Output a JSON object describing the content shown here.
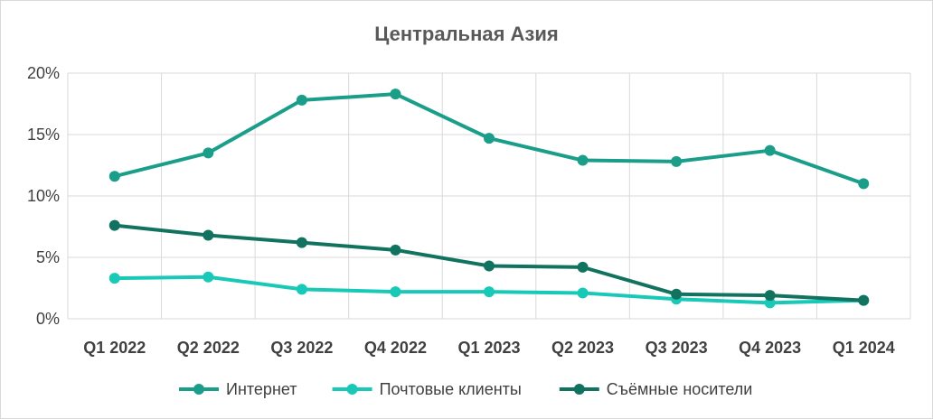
{
  "chart_data": {
    "type": "line",
    "title": "Центральная Азия",
    "categories": [
      "Q1 2022",
      "Q2 2022",
      "Q3 2022",
      "Q4 2022",
      "Q1 2023",
      "Q2 2023",
      "Q3 2023",
      "Q4 2023",
      "Q1 2024"
    ],
    "ylim": [
      0,
      20
    ],
    "yticks": [
      0,
      5,
      10,
      15,
      20
    ],
    "ytick_labels": [
      "0%",
      "5%",
      "10%",
      "15%",
      "20%"
    ],
    "grid": true,
    "legend": "bottom",
    "series": [
      {
        "name": "Интернет",
        "color": "#1a9e8a",
        "values": [
          11.6,
          13.5,
          17.8,
          18.3,
          14.7,
          12.9,
          12.8,
          13.7,
          11.0
        ]
      },
      {
        "name": "Почтовые клиенты",
        "color": "#19c9b8",
        "values": [
          3.3,
          3.4,
          2.4,
          2.2,
          2.2,
          2.1,
          1.6,
          1.3,
          1.5
        ]
      },
      {
        "name": "Съёмные носители",
        "color": "#11735f",
        "values": [
          7.6,
          6.8,
          6.2,
          5.6,
          4.3,
          4.2,
          2.0,
          1.9,
          1.5
        ]
      }
    ]
  }
}
